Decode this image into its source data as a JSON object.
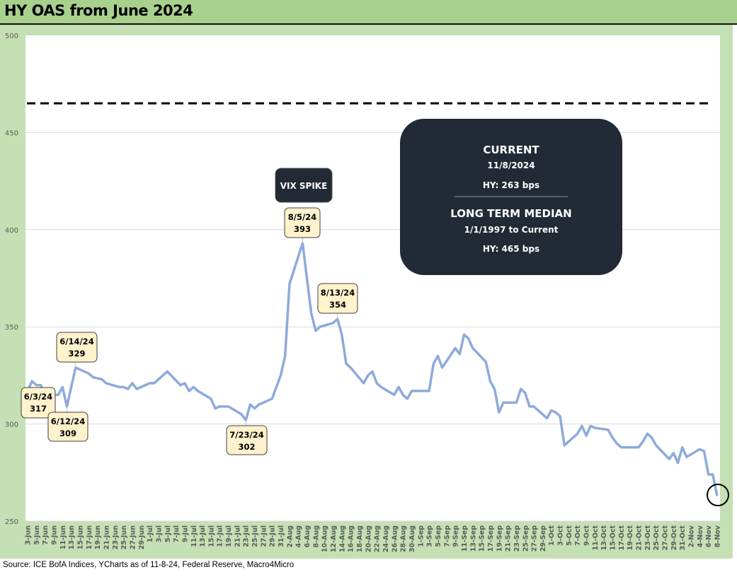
{
  "title": "HY OAS from June 2024",
  "source": "Source: ICE BofA Indices, YCharts as of 11-8-24, Federal Reserve, Macro4Micro",
  "info_box": {
    "current_label": "CURRENT",
    "current_date": "11/8/2024",
    "current_value": "HY: 263 bps",
    "median_label": "LONG TERM MEDIAN",
    "median_range": "1/1/1997 to Current",
    "median_value": "HY: 465 bps"
  },
  "vix_label": "VIX SPIKE",
  "annotations": [
    {
      "date": "6/3/24",
      "value": "317"
    },
    {
      "date": "6/12/24",
      "value": "309"
    },
    {
      "date": "6/14/24",
      "value": "329"
    },
    {
      "date": "7/23/24",
      "value": "302"
    },
    {
      "date": "8/5/24",
      "value": "393"
    },
    {
      "date": "8/13/24",
      "value": "354"
    }
  ],
  "colors": {
    "line": "#8eaadb",
    "plot_bg": "#c5e0b4",
    "title_bg": "#a9d18e",
    "box": "#222a35",
    "callout": "#fff2cc"
  },
  "chart_data": {
    "type": "line",
    "title": "HY OAS from June 2024",
    "xlabel": "",
    "ylabel": "",
    "ylim": [
      250,
      500
    ],
    "yticks": [
      "250",
      "300",
      "350",
      "400",
      "450",
      "500"
    ],
    "grid": true,
    "start_date": "2024-06-03",
    "end_date": "2024-11-08",
    "xticks": [
      "3-Jun",
      "5-Jun",
      "7-Jun",
      "9-Jun",
      "11-Jun",
      "13-Jun",
      "15-Jun",
      "17-Jun",
      "19-Jun",
      "21-Jun",
      "23-Jun",
      "25-Jun",
      "27-Jun",
      "29-Jun",
      "1-Jul",
      "3-Jul",
      "5-Jul",
      "7-Jul",
      "9-Jul",
      "11-Jul",
      "13-Jul",
      "15-Jul",
      "17-Jul",
      "19-Jul",
      "21-Jul",
      "23-Jul",
      "25-Jul",
      "27-Jul",
      "29-Jul",
      "31-Jul",
      "2-Aug",
      "4-Aug",
      "6-Aug",
      "8-Aug",
      "10-Aug",
      "12-Aug",
      "14-Aug",
      "16-Aug",
      "18-Aug",
      "20-Aug",
      "22-Aug",
      "24-Aug",
      "26-Aug",
      "28-Aug",
      "30-Aug",
      "1-Sep",
      "3-Sep",
      "5-Sep",
      "7-Sep",
      "9-Sep",
      "11-Sep",
      "13-Sep",
      "15-Sep",
      "17-Sep",
      "19-Sep",
      "21-Sep",
      "23-Sep",
      "25-Sep",
      "27-Sep",
      "29-Sep",
      "1-Oct",
      "3-Oct",
      "5-Oct",
      "7-Oct",
      "9-Oct",
      "11-Oct",
      "13-Oct",
      "15-Oct",
      "17-Oct",
      "19-Oct",
      "21-Oct",
      "23-Oct",
      "25-Oct",
      "27-Oct",
      "29-Oct",
      "31-Oct",
      "2-Nov",
      "4-Nov",
      "6-Nov",
      "8-Nov"
    ],
    "reference_line": {
      "name": "Long Term Median",
      "value": 465
    },
    "series": [
      {
        "name": "HY OAS",
        "points": [
          [
            "2024-06-03",
            317
          ],
          [
            "2024-06-04",
            322
          ],
          [
            "2024-06-05",
            320
          ],
          [
            "2024-06-06",
            320
          ],
          [
            "2024-06-07",
            315
          ],
          [
            "2024-06-10",
            315
          ],
          [
            "2024-06-11",
            319
          ],
          [
            "2024-06-12",
            309
          ],
          [
            "2024-06-13",
            319
          ],
          [
            "2024-06-14",
            329
          ],
          [
            "2024-06-17",
            326
          ],
          [
            "2024-06-18",
            324
          ],
          [
            "2024-06-20",
            323
          ],
          [
            "2024-06-21",
            321
          ],
          [
            "2024-06-24",
            319
          ],
          [
            "2024-06-25",
            319
          ],
          [
            "2024-06-26",
            318
          ],
          [
            "2024-06-27",
            321
          ],
          [
            "2024-06-28",
            318
          ],
          [
            "2024-07-01",
            321
          ],
          [
            "2024-07-02",
            321
          ],
          [
            "2024-07-03",
            323
          ],
          [
            "2024-07-05",
            327
          ],
          [
            "2024-07-08",
            320
          ],
          [
            "2024-07-09",
            321
          ],
          [
            "2024-07-10",
            317
          ],
          [
            "2024-07-11",
            319
          ],
          [
            "2024-07-12",
            317
          ],
          [
            "2024-07-15",
            313
          ],
          [
            "2024-07-16",
            308
          ],
          [
            "2024-07-17",
            309
          ],
          [
            "2024-07-18",
            309
          ],
          [
            "2024-07-19",
            309
          ],
          [
            "2024-07-22",
            305
          ],
          [
            "2024-07-23",
            302
          ],
          [
            "2024-07-24",
            310
          ],
          [
            "2024-07-25",
            308
          ],
          [
            "2024-07-26",
            310
          ],
          [
            "2024-07-29",
            313
          ],
          [
            "2024-07-30",
            319
          ],
          [
            "2024-07-31",
            325
          ],
          [
            "2024-08-01",
            335
          ],
          [
            "2024-08-02",
            372
          ],
          [
            "2024-08-05",
            393
          ],
          [
            "2024-08-06",
            375
          ],
          [
            "2024-08-07",
            357
          ],
          [
            "2024-08-08",
            348
          ],
          [
            "2024-08-09",
            350
          ],
          [
            "2024-08-12",
            352
          ],
          [
            "2024-08-13",
            354
          ],
          [
            "2024-08-14",
            346
          ],
          [
            "2024-08-15",
            331
          ],
          [
            "2024-08-16",
            329
          ],
          [
            "2024-08-19",
            321
          ],
          [
            "2024-08-20",
            325
          ],
          [
            "2024-08-21",
            327
          ],
          [
            "2024-08-22",
            321
          ],
          [
            "2024-08-23",
            319
          ],
          [
            "2024-08-26",
            315
          ],
          [
            "2024-08-27",
            319
          ],
          [
            "2024-08-28",
            315
          ],
          [
            "2024-08-29",
            313
          ],
          [
            "2024-08-30",
            317
          ],
          [
            "2024-09-03",
            317
          ],
          [
            "2024-09-04",
            331
          ],
          [
            "2024-09-05",
            335
          ],
          [
            "2024-09-06",
            329
          ],
          [
            "2024-09-09",
            339
          ],
          [
            "2024-09-10",
            336
          ],
          [
            "2024-09-11",
            346
          ],
          [
            "2024-09-12",
            344
          ],
          [
            "2024-09-13",
            339
          ],
          [
            "2024-09-16",
            332
          ],
          [
            "2024-09-17",
            322
          ],
          [
            "2024-09-18",
            318
          ],
          [
            "2024-09-19",
            306
          ],
          [
            "2024-09-20",
            311
          ],
          [
            "2024-09-23",
            311
          ],
          [
            "2024-09-24",
            318
          ],
          [
            "2024-09-25",
            316
          ],
          [
            "2024-09-26",
            309
          ],
          [
            "2024-09-27",
            309
          ],
          [
            "2024-09-30",
            303
          ],
          [
            "2024-10-01",
            307
          ],
          [
            "2024-10-02",
            306
          ],
          [
            "2024-10-03",
            304
          ],
          [
            "2024-10-04",
            289
          ],
          [
            "2024-10-07",
            295
          ],
          [
            "2024-10-08",
            299
          ],
          [
            "2024-10-09",
            294
          ],
          [
            "2024-10-10",
            299
          ],
          [
            "2024-10-11",
            298
          ],
          [
            "2024-10-14",
            297
          ],
          [
            "2024-10-15",
            293
          ],
          [
            "2024-10-16",
            290
          ],
          [
            "2024-10-17",
            288
          ],
          [
            "2024-10-18",
            288
          ],
          [
            "2024-10-21",
            288
          ],
          [
            "2024-10-22",
            291
          ],
          [
            "2024-10-23",
            295
          ],
          [
            "2024-10-24",
            293
          ],
          [
            "2024-10-25",
            289
          ],
          [
            "2024-10-28",
            282
          ],
          [
            "2024-10-29",
            285
          ],
          [
            "2024-10-30",
            280
          ],
          [
            "2024-10-31",
            288
          ],
          [
            "2024-11-01",
            283
          ],
          [
            "2024-11-04",
            287
          ],
          [
            "2024-11-05",
            286
          ],
          [
            "2024-11-06",
            274
          ],
          [
            "2024-11-07",
            274
          ],
          [
            "2024-11-08",
            263
          ]
        ]
      }
    ]
  }
}
